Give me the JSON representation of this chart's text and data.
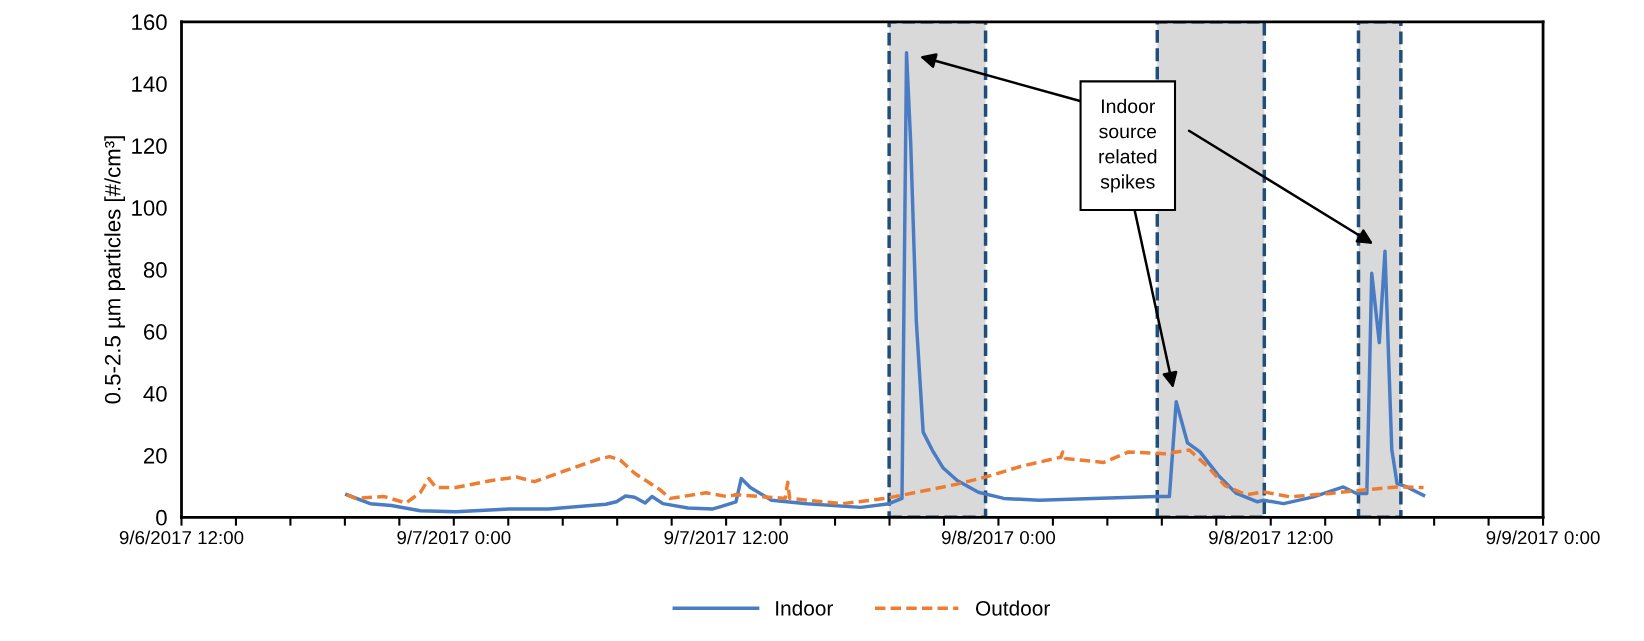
{
  "chart_data": {
    "type": "line",
    "ylabel": "0.5-2.5 µm particles [#/cm³]",
    "xlim": [
      "2017-09-06T12:00",
      "2017-09-09T00:00"
    ],
    "ylim": [
      0,
      160
    ],
    "yticks": [
      0,
      20,
      40,
      60,
      80,
      100,
      120,
      140,
      160
    ],
    "xticks": [
      {
        "value": "2017-09-06T12:00",
        "label": "9/6/2017 12:00"
      },
      {
        "value": "2017-09-06T14:24",
        "label": null
      },
      {
        "value": "2017-09-06T16:48",
        "label": null
      },
      {
        "value": "2017-09-06T19:12",
        "label": null
      },
      {
        "value": "2017-09-06T21:36",
        "label": null
      },
      {
        "value": "2017-09-07T00:00",
        "label": "9/7/2017 0:00"
      },
      {
        "value": "2017-09-07T02:24",
        "label": null
      },
      {
        "value": "2017-09-07T04:48",
        "label": null
      },
      {
        "value": "2017-09-07T07:12",
        "label": null
      },
      {
        "value": "2017-09-07T09:36",
        "label": null
      },
      {
        "value": "2017-09-07T12:00",
        "label": "9/7/2017 12:00"
      },
      {
        "value": "2017-09-07T14:24",
        "label": null
      },
      {
        "value": "2017-09-07T16:48",
        "label": null
      },
      {
        "value": "2017-09-07T19:12",
        "label": null
      },
      {
        "value": "2017-09-07T21:36",
        "label": null
      },
      {
        "value": "2017-09-08T00:00",
        "label": "9/8/2017 0:00"
      },
      {
        "value": "2017-09-08T02:24",
        "label": null
      },
      {
        "value": "2017-09-08T04:48",
        "label": null
      },
      {
        "value": "2017-09-08T07:12",
        "label": null
      },
      {
        "value": "2017-09-08T09:36",
        "label": null
      },
      {
        "value": "2017-09-08T12:00",
        "label": "9/8/2017 12:00"
      },
      {
        "value": "2017-09-08T14:24",
        "label": null
      },
      {
        "value": "2017-09-08T16:48",
        "label": null
      },
      {
        "value": "2017-09-08T19:12",
        "label": null
      },
      {
        "value": "2017-09-08T21:36",
        "label": null
      },
      {
        "value": "2017-09-09T00:00",
        "label": "9/9/2017 0:00"
      }
    ],
    "grid": false,
    "legend": "bottom",
    "marker": "none",
    "series": [
      {
        "name": "Indoor",
        "color": "#4a7cc4",
        "line_style": "solid",
        "x": [
          "2017-09-06T19:17",
          "2017-09-06T20:19",
          "2017-09-06T21:15",
          "2017-09-06T22:31",
          "2017-09-07T00:05",
          "2017-09-07T02:27",
          "2017-09-07T04:11",
          "2017-09-07T06:42",
          "2017-09-07T07:10",
          "2017-09-07T07:34",
          "2017-09-07T07:58",
          "2017-09-07T08:26",
          "2017-09-07T08:44",
          "2017-09-07T09:13",
          "2017-09-07T10:19",
          "2017-09-07T11:25",
          "2017-09-07T11:48",
          "2017-09-07T12:26",
          "2017-09-07T12:40",
          "2017-09-07T13:04",
          "2017-09-07T14:00",
          "2017-09-07T15:34",
          "2017-09-07T17:56",
          "2017-09-07T19:11",
          "2017-09-07T19:45",
          "2017-09-07T19:57",
          "2017-09-07T20:08",
          "2017-09-07T20:23",
          "2017-09-07T20:41",
          "2017-09-07T21:05",
          "2017-09-07T21:34",
          "2017-09-07T22:11",
          "2017-09-07T23:07",
          "2017-09-08T00:14",
          "2017-09-08T01:48",
          "2017-09-08T04:10",
          "2017-09-08T06:59",
          "2017-09-08T07:32",
          "2017-09-08T07:50",
          "2017-09-08T08:20",
          "2017-09-08T08:53",
          "2017-09-08T09:41",
          "2017-09-08T10:28",
          "2017-09-08T11:25",
          "2017-09-08T11:41",
          "2017-09-08T12:34",
          "2017-09-08T13:53",
          "2017-09-08T15:12",
          "2017-09-08T15:47",
          "2017-09-08T16:14",
          "2017-09-08T16:27",
          "2017-09-08T16:47",
          "2017-09-08T17:02",
          "2017-09-08T17:20",
          "2017-09-08T17:34",
          "2017-09-08T18:00",
          "2017-09-08T18:44"
        ],
        "values": [
          7.3,
          4.4,
          3.8,
          2.1,
          1.8,
          2.7,
          2.7,
          4.2,
          5.0,
          6.9,
          6.5,
          4.6,
          6.7,
          4.4,
          3.0,
          2.7,
          3.5,
          5.0,
          12.5,
          9.6,
          5.5,
          4.4,
          3.2,
          4.4,
          6.1,
          150,
          121,
          63,
          27.5,
          21.7,
          15.9,
          11.9,
          8.1,
          6.1,
          5.5,
          6.1,
          6.7,
          6.7,
          37.3,
          24,
          21.1,
          13.6,
          7.8,
          5.0,
          5.5,
          4.4,
          6.6,
          9.8,
          7.7,
          7.7,
          78.8,
          56.4,
          85.9,
          21.9,
          10.9,
          9.8,
          7.1
        ]
      },
      {
        "name": "Outdoor",
        "color": "#ed7d31",
        "line_style": "dashed",
        "x": [
          "2017-09-06T19:17",
          "2017-09-06T19:40",
          "2017-09-06T20:56",
          "2017-09-06T21:53",
          "2017-09-06T22:31",
          "2017-09-06T22:54",
          "2017-09-06T23:13",
          "2017-09-07T00:05",
          "2017-09-07T01:40",
          "2017-09-07T02:46",
          "2017-09-07T03:33",
          "2017-09-07T04:49",
          "2017-09-07T06:23",
          "2017-09-07T06:52",
          "2017-09-07T07:20",
          "2017-09-07T07:58",
          "2017-09-07T09:04",
          "2017-09-07T09:32",
          "2017-09-07T11:07",
          "2017-09-07T12:02",
          "2017-09-07T12:26",
          "2017-09-07T14:36",
          "2017-09-07T14:43",
          "2017-09-07T14:48",
          "2017-09-07T17:08",
          "2017-09-07T19:02",
          "2017-09-07T20:37",
          "2017-09-07T22:11",
          "2017-09-07T23:26",
          "2017-09-08T01:01",
          "2017-09-08T02:45",
          "2017-09-08T02:50",
          "2017-09-08T02:57",
          "2017-09-08T04:38",
          "2017-09-08T05:44",
          "2017-09-08T07:19",
          "2017-09-08T08:25",
          "2017-09-08T09:12",
          "2017-09-08T09:59",
          "2017-09-08T10:56",
          "2017-09-08T11:41",
          "2017-09-08T12:51",
          "2017-09-08T14:37",
          "2017-09-08T16:05",
          "2017-09-08T17:34",
          "2017-09-08T18:44"
        ],
        "values": [
          7.3,
          6.1,
          6.7,
          4.6,
          7.9,
          12.5,
          9.6,
          9.6,
          11.9,
          13.0,
          11.5,
          14.8,
          18.8,
          19.6,
          18.5,
          14.2,
          9.0,
          6.1,
          7.9,
          6.7,
          7.3,
          6.1,
          11.3,
          6.1,
          4.4,
          6.1,
          8.4,
          10.7,
          13.0,
          16.5,
          19.4,
          21.1,
          19.0,
          17.7,
          21.1,
          20.5,
          21.7,
          16.5,
          10.2,
          7.3,
          8.2,
          6.6,
          7.7,
          8.8,
          9.8,
          9.6
        ]
      }
    ],
    "bands": [
      {
        "axis": "x",
        "from": "2017-09-07T19:11",
        "to": "2017-09-07T23:26",
        "label": null,
        "color": "#d9d9d9"
      },
      {
        "axis": "x",
        "from": "2017-09-08T07:00",
        "to": "2017-09-08T11:43",
        "label": null,
        "color": "#d9d9d9"
      },
      {
        "axis": "x",
        "from": "2017-09-08T15:52",
        "to": "2017-09-08T17:44",
        "label": null,
        "color": "#d9d9d9"
      }
    ],
    "annotations": [
      "Indoor\nsource\nrelated\nspikes"
    ]
  }
}
